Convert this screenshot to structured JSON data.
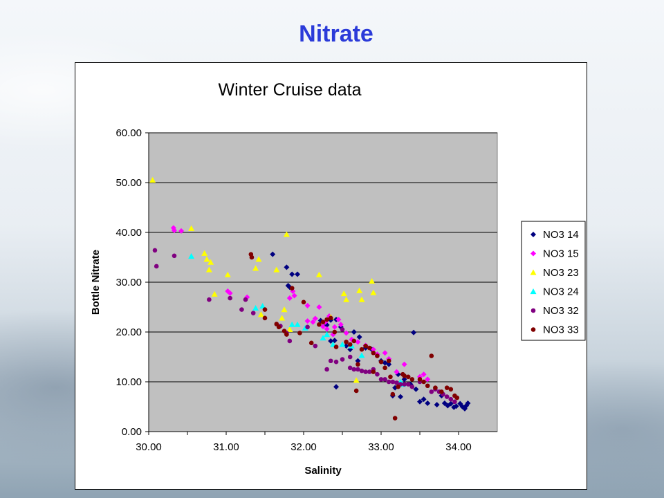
{
  "slide": {
    "title": "Nitrate"
  },
  "chart_data": {
    "type": "scatter",
    "title": "Winter Cruise data",
    "xlabel": "Salinity",
    "ylabel": "Bottle Nitrate",
    "xlim": [
      30.0,
      34.5
    ],
    "ylim": [
      0.0,
      60.0
    ],
    "x_ticks": [
      30.0,
      31.0,
      32.0,
      33.0,
      34.0
    ],
    "y_ticks": [
      0.0,
      10.0,
      20.0,
      30.0,
      40.0,
      50.0,
      60.0
    ],
    "x_tick_labels": [
      "30.00",
      "31.00",
      "32.00",
      "33.00",
      "34.00"
    ],
    "y_tick_labels": [
      "0.00",
      "10.00",
      "20.00",
      "30.00",
      "40.00",
      "50.00",
      "60.00"
    ],
    "plot_background": "#c0c0c0",
    "horizontal_gridlines": true,
    "legend_position": "right",
    "series": [
      {
        "name": "NO3 14",
        "color": "#000080",
        "marker": "diamond",
        "points": [
          [
            31.6,
            35.6
          ],
          [
            31.78,
            33.0
          ],
          [
            31.8,
            29.3
          ],
          [
            31.85,
            31.6
          ],
          [
            31.92,
            31.6
          ],
          [
            31.82,
            29.0
          ],
          [
            32.22,
            22.3
          ],
          [
            32.35,
            22.4
          ],
          [
            32.3,
            21.4
          ],
          [
            32.42,
            22.5
          ],
          [
            32.48,
            21.0
          ],
          [
            32.4,
            18.3
          ],
          [
            32.55,
            17.2
          ],
          [
            32.6,
            16.5
          ],
          [
            32.65,
            20.0
          ],
          [
            32.72,
            19.0
          ],
          [
            32.8,
            16.8
          ],
          [
            32.88,
            16.5
          ],
          [
            32.95,
            15.5
          ],
          [
            33.0,
            14.2
          ],
          [
            33.05,
            13.8
          ],
          [
            33.1,
            13.5
          ],
          [
            33.18,
            8.8
          ],
          [
            33.22,
            11.5
          ],
          [
            33.3,
            10.5
          ],
          [
            33.38,
            9.5
          ],
          [
            33.42,
            19.9
          ],
          [
            33.45,
            8.5
          ],
          [
            33.5,
            6.0
          ],
          [
            33.55,
            6.5
          ],
          [
            33.6,
            5.7
          ],
          [
            33.72,
            5.4
          ],
          [
            33.78,
            7.2
          ],
          [
            33.82,
            5.7
          ],
          [
            33.86,
            5.2
          ],
          [
            33.9,
            5.6
          ],
          [
            33.94,
            4.9
          ],
          [
            33.97,
            5.1
          ],
          [
            34.02,
            5.6
          ],
          [
            34.05,
            5.0
          ],
          [
            34.08,
            4.6
          ],
          [
            34.1,
            5.2
          ],
          [
            34.12,
            5.7
          ],
          [
            32.42,
            9.0
          ],
          [
            33.15,
            7.2
          ],
          [
            33.25,
            7.0
          ],
          [
            32.7,
            14.2
          ],
          [
            32.35,
            18.2
          ]
        ]
      },
      {
        "name": "NO3 15",
        "color": "#ff00ff",
        "marker": "diamond",
        "points": [
          [
            30.32,
            40.9
          ],
          [
            30.33,
            40.4
          ],
          [
            30.42,
            40.3
          ],
          [
            31.02,
            28.2
          ],
          [
            31.05,
            27.8
          ],
          [
            31.27,
            27.0
          ],
          [
            31.82,
            26.8
          ],
          [
            31.86,
            28.2
          ],
          [
            31.88,
            27.3
          ],
          [
            32.05,
            25.3
          ],
          [
            32.05,
            22.2
          ],
          [
            32.15,
            22.7
          ],
          [
            32.2,
            25.0
          ],
          [
            32.12,
            22.0
          ],
          [
            32.25,
            21.1
          ],
          [
            32.3,
            20.6
          ],
          [
            32.33,
            23.2
          ],
          [
            32.4,
            21.0
          ],
          [
            32.45,
            22.5
          ],
          [
            32.48,
            21.5
          ],
          [
            32.55,
            19.8
          ],
          [
            32.62,
            18.5
          ],
          [
            32.7,
            18.0
          ],
          [
            32.8,
            17.3
          ],
          [
            32.9,
            16.5
          ],
          [
            32.95,
            15.5
          ],
          [
            33.05,
            15.8
          ],
          [
            33.1,
            14.6
          ],
          [
            33.2,
            12.0
          ],
          [
            33.3,
            13.5
          ],
          [
            33.5,
            11.0
          ],
          [
            33.55,
            11.5
          ],
          [
            33.6,
            10.5
          ],
          [
            32.28,
            22.0
          ],
          [
            32.38,
            19.5
          ]
        ]
      },
      {
        "name": "NO3 23",
        "color": "#ffff00",
        "marker": "triangle",
        "points": [
          [
            30.05,
            50.5
          ],
          [
            30.55,
            40.8
          ],
          [
            30.72,
            35.8
          ],
          [
            30.75,
            34.6
          ],
          [
            30.8,
            34.0
          ],
          [
            30.78,
            32.5
          ],
          [
            30.85,
            27.6
          ],
          [
            31.02,
            31.5
          ],
          [
            31.38,
            32.8
          ],
          [
            31.42,
            34.6
          ],
          [
            31.45,
            23.5
          ],
          [
            31.65,
            32.5
          ],
          [
            31.72,
            22.8
          ],
          [
            31.78,
            39.6
          ],
          [
            31.82,
            20.5
          ],
          [
            32.2,
            31.5
          ],
          [
            32.35,
            23.0
          ],
          [
            32.52,
            27.7
          ],
          [
            32.55,
            26.5
          ],
          [
            32.72,
            28.3
          ],
          [
            32.75,
            26.5
          ],
          [
            32.88,
            30.2
          ],
          [
            32.9,
            27.9
          ],
          [
            32.68,
            10.3
          ],
          [
            31.75,
            24.5
          ]
        ]
      },
      {
        "name": "NO3 24",
        "color": "#00ffff",
        "marker": "triangle",
        "points": [
          [
            30.55,
            35.2
          ],
          [
            31.38,
            24.8
          ],
          [
            31.47,
            25.2
          ],
          [
            31.85,
            21.5
          ],
          [
            31.92,
            21.5
          ],
          [
            32.25,
            18.8
          ],
          [
            32.3,
            19.5
          ],
          [
            32.38,
            17.5
          ],
          [
            32.5,
            17.5
          ],
          [
            32.75,
            15.3
          ],
          [
            33.25,
            10.0
          ],
          [
            33.28,
            9.5
          ],
          [
            32.02,
            20.8
          ],
          [
            32.62,
            17.2
          ]
        ]
      },
      {
        "name": "NO3 32",
        "color": "#800080",
        "marker": "circle",
        "points": [
          [
            30.08,
            36.4
          ],
          [
            30.1,
            33.2
          ],
          [
            30.33,
            35.3
          ],
          [
            30.78,
            26.5
          ],
          [
            31.05,
            26.8
          ],
          [
            31.2,
            24.5
          ],
          [
            31.25,
            26.5
          ],
          [
            31.35,
            23.8
          ],
          [
            31.7,
            21.2
          ],
          [
            31.78,
            19.8
          ],
          [
            31.82,
            18.2
          ],
          [
            32.05,
            21.0
          ],
          [
            32.15,
            17.2
          ],
          [
            32.3,
            12.5
          ],
          [
            32.35,
            14.2
          ],
          [
            32.42,
            14.0
          ],
          [
            32.5,
            14.5
          ],
          [
            32.55,
            18.0
          ],
          [
            32.6,
            12.8
          ],
          [
            32.65,
            12.5
          ],
          [
            32.7,
            12.5
          ],
          [
            32.75,
            12.2
          ],
          [
            32.8,
            12.0
          ],
          [
            32.85,
            12.0
          ],
          [
            32.9,
            12.5
          ],
          [
            32.95,
            11.5
          ],
          [
            33.0,
            10.5
          ],
          [
            33.05,
            10.5
          ],
          [
            33.1,
            10.0
          ],
          [
            33.15,
            10.0
          ],
          [
            33.2,
            9.8
          ],
          [
            33.25,
            9.5
          ],
          [
            33.3,
            9.5
          ],
          [
            33.35,
            9.5
          ],
          [
            33.4,
            9.0
          ],
          [
            33.5,
            10.0
          ],
          [
            33.65,
            8.0
          ],
          [
            33.7,
            8.5
          ],
          [
            33.75,
            8.0
          ],
          [
            33.8,
            7.5
          ],
          [
            33.85,
            7.0
          ],
          [
            33.9,
            6.5
          ],
          [
            33.95,
            6.0
          ],
          [
            32.5,
            20.5
          ],
          [
            32.6,
            15.0
          ]
        ]
      },
      {
        "name": "NO3 33",
        "color": "#800000",
        "marker": "circle",
        "points": [
          [
            31.32,
            35.6
          ],
          [
            31.33,
            35.0
          ],
          [
            31.5,
            24.5
          ],
          [
            31.5,
            22.8
          ],
          [
            31.65,
            21.6
          ],
          [
            31.68,
            21.0
          ],
          [
            31.75,
            20.2
          ],
          [
            31.78,
            19.5
          ],
          [
            31.85,
            28.8
          ],
          [
            31.95,
            19.8
          ],
          [
            32.0,
            26.0
          ],
          [
            32.1,
            17.8
          ],
          [
            32.2,
            21.5
          ],
          [
            32.25,
            22.0
          ],
          [
            32.3,
            22.5
          ],
          [
            32.35,
            22.8
          ],
          [
            32.4,
            20.0
          ],
          [
            32.42,
            17.0
          ],
          [
            32.55,
            18.0
          ],
          [
            32.6,
            17.5
          ],
          [
            32.65,
            18.2
          ],
          [
            32.68,
            8.2
          ],
          [
            32.7,
            13.5
          ],
          [
            32.75,
            16.5
          ],
          [
            32.8,
            17.2
          ],
          [
            32.85,
            16.8
          ],
          [
            32.9,
            15.8
          ],
          [
            32.95,
            15.2
          ],
          [
            33.0,
            14.0
          ],
          [
            33.05,
            12.8
          ],
          [
            33.1,
            14.2
          ],
          [
            33.12,
            11.0
          ],
          [
            33.15,
            7.5
          ],
          [
            33.18,
            2.7
          ],
          [
            33.22,
            9.0
          ],
          [
            33.28,
            11.5
          ],
          [
            33.3,
            11.2
          ],
          [
            33.35,
            11.0
          ],
          [
            33.4,
            10.5
          ],
          [
            33.5,
            10.5
          ],
          [
            33.55,
            10.0
          ],
          [
            33.6,
            9.2
          ],
          [
            33.65,
            15.2
          ],
          [
            33.7,
            8.8
          ],
          [
            33.78,
            8.0
          ],
          [
            33.85,
            8.8
          ],
          [
            33.9,
            8.5
          ],
          [
            33.95,
            7.2
          ],
          [
            33.98,
            6.8
          ],
          [
            32.9,
            12.0
          ]
        ]
      }
    ]
  }
}
